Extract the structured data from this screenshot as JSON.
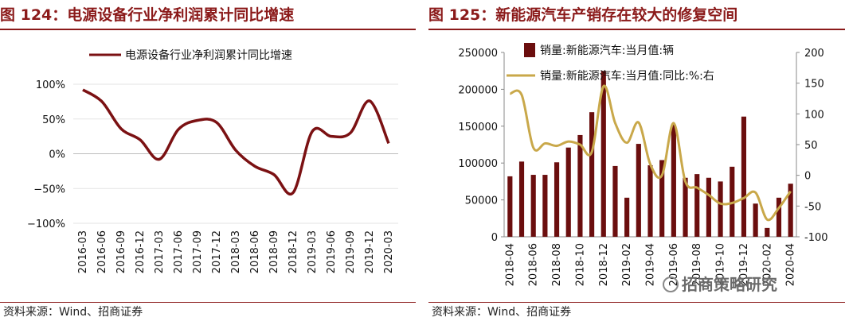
{
  "left": {
    "title": "图 124：电源设备行业净利润累计同比增速",
    "source": "资料来源：Wind、招商证券",
    "chart_data": {
      "type": "line",
      "legend": [
        "电源设备行业净利润累计同比增速"
      ],
      "x": [
        "2016-03",
        "2016-06",
        "2016-09",
        "2016-12",
        "2017-03",
        "2017-06",
        "2017-09",
        "2017-12",
        "2018-03",
        "2018-06",
        "2018-09",
        "2018-12",
        "2019-03",
        "2019-06",
        "2019-09",
        "2019-12",
        "2020-03"
      ],
      "yticks": [
        "100%",
        "50%",
        "0%",
        "−50%",
        "−100%"
      ],
      "ylim": [
        -100,
        100
      ],
      "series": [
        {
          "name": "电源设备行业净利润累计同比增速",
          "color": "#7b1113",
          "values": [
            92,
            75,
            36,
            20,
            -8,
            35,
            48,
            45,
            5,
            -18,
            -30,
            -56,
            32,
            25,
            30,
            76,
            15
          ]
        }
      ]
    }
  },
  "right": {
    "title": "图 125：新能源汽车产销存在较大的修复空间",
    "source": "资料来源：Wind、招商证券",
    "watermark": "招商策略研究",
    "chart_data": {
      "type": "bar",
      "x": [
        "2018-04",
        "2018-05",
        "2018-06",
        "2018-07",
        "2018-08",
        "2018-09",
        "2018-10",
        "2018-11",
        "2018-12",
        "2019-01",
        "2019-02",
        "2019-03",
        "2019-04",
        "2019-05",
        "2019-06",
        "2019-07",
        "2019-08",
        "2019-09",
        "2019-10",
        "2019-11",
        "2019-12",
        "2020-01",
        "2020-02",
        "2020-03",
        "2020-04"
      ],
      "xticks": [
        "2018-04",
        "2018-06",
        "2018-08",
        "2018-10",
        "2018-12",
        "2019-02",
        "2019-04",
        "2019-06",
        "2019-08",
        "2019-10",
        "2019-12",
        "2020-02",
        "2020-04"
      ],
      "yticks_left": [
        "250000",
        "200000",
        "150000",
        "100000",
        "50000",
        "0"
      ],
      "yticks_right": [
        "200",
        "150",
        "100",
        "50",
        "0",
        "-50",
        "-100"
      ],
      "ylim_left": [
        0,
        250000
      ],
      "ylim_right": [
        -100,
        200
      ],
      "series": [
        {
          "name": "销量:新能源汽车:当月值:辆",
          "axis": "left",
          "color": "#6b0e0e",
          "values": [
            82000,
            102000,
            84000,
            84000,
            101000,
            121000,
            138000,
            169000,
            225000,
            96000,
            53000,
            126000,
            97000,
            104000,
            152000,
            80000,
            85000,
            80000,
            75000,
            95000,
            163000,
            45000,
            12000,
            53000,
            72000
          ]
        },
        {
          "name": "销量:新能源汽车:当月值:同比:%:右",
          "axis": "right",
          "color": "#c9a84a",
          "values": [
            133,
            131,
            45,
            52,
            48,
            55,
            50,
            38,
            145,
            85,
            53,
            86,
            18,
            0,
            85,
            -10,
            -20,
            -32,
            -46,
            -45,
            -37,
            -28,
            -72,
            -53,
            -26
          ]
        }
      ]
    }
  }
}
